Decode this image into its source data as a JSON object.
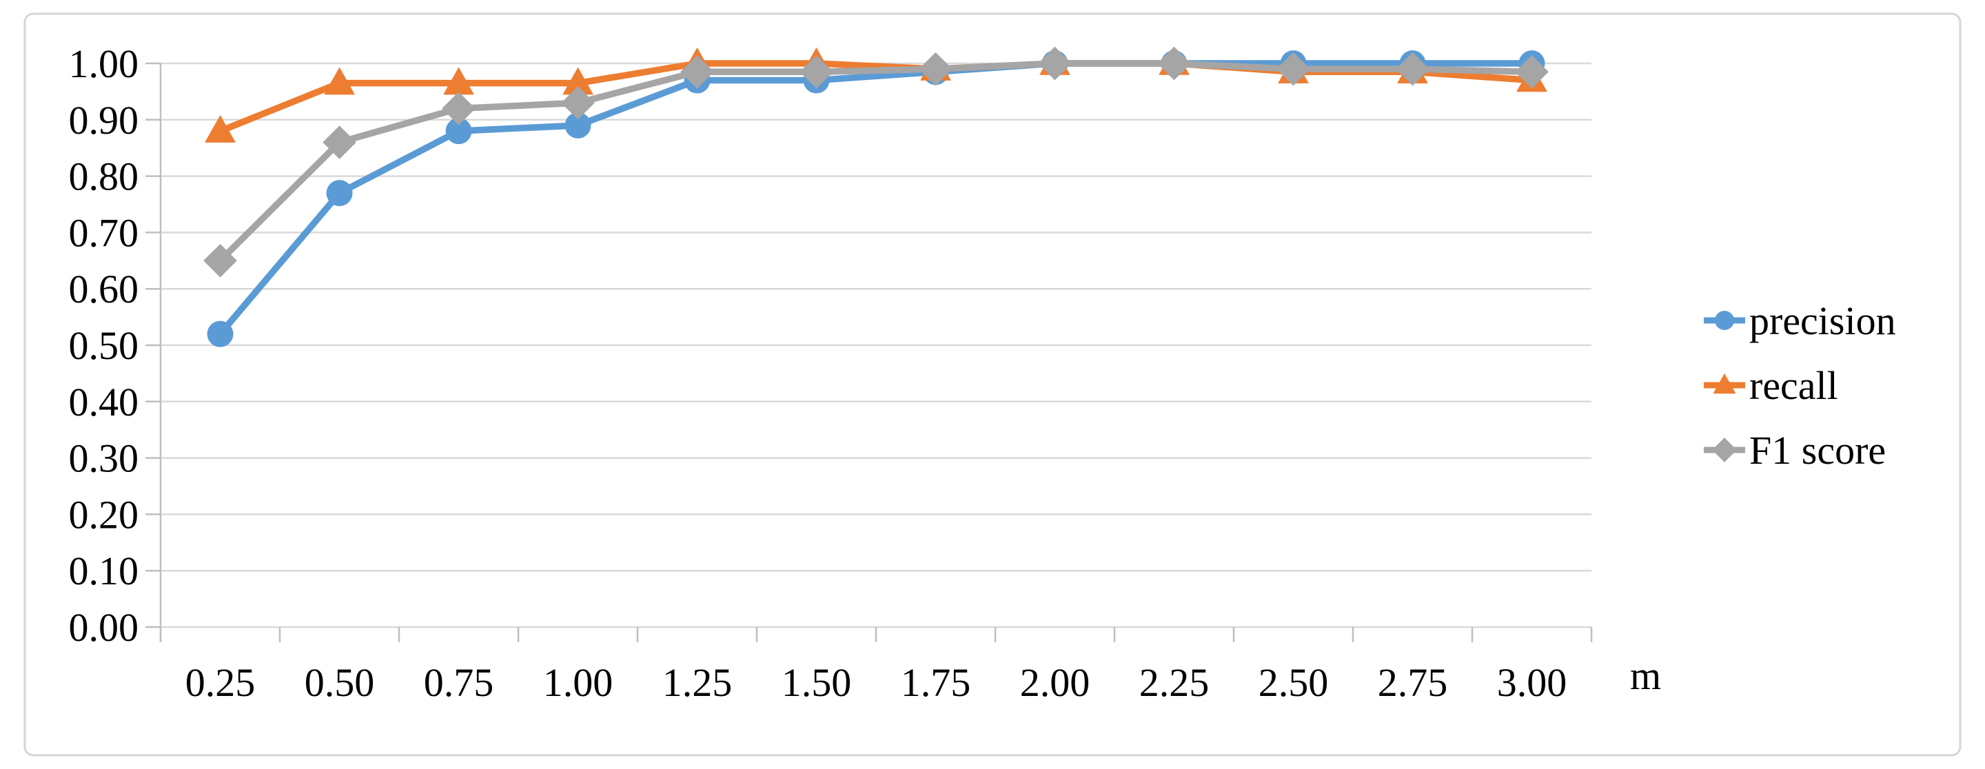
{
  "figure": {
    "background": "#ffffff",
    "border_color": "#d6d6d6",
    "gridline_color": "#d9d9d9",
    "axis_color": "#bfbfbf",
    "text_color": "#000000"
  },
  "chart_data": {
    "type": "line",
    "title": "",
    "xlabel": "m",
    "ylabel": "",
    "x": [
      0.25,
      0.5,
      0.75,
      1.0,
      1.25,
      1.5,
      1.75,
      2.0,
      2.25,
      2.5,
      2.75,
      3.0
    ],
    "x_tick_labels": [
      "0.25",
      "0.50",
      "0.75",
      "1.00",
      "1.25",
      "1.50",
      "1.75",
      "2.00",
      "2.25",
      "2.50",
      "2.75",
      "3.00"
    ],
    "y_tick_labels": [
      "0.00",
      "0.10",
      "0.20",
      "0.30",
      "0.40",
      "0.50",
      "0.60",
      "0.70",
      "0.80",
      "0.90",
      "1.00"
    ],
    "ylim": [
      0.0,
      1.0
    ],
    "y_step": 0.1,
    "grid": "horizontal",
    "legend_position": "right",
    "series": [
      {
        "name": "precision",
        "color": "#5b9bd5",
        "marker": "circle",
        "values": [
          0.52,
          0.77,
          0.88,
          0.89,
          0.97,
          0.97,
          0.985,
          1.0,
          1.0,
          1.0,
          1.0,
          1.0
        ]
      },
      {
        "name": "recall",
        "color": "#ed7d31",
        "marker": "triangle",
        "values": [
          0.88,
          0.965,
          0.965,
          0.965,
          1.0,
          1.0,
          0.99,
          1.0,
          1.0,
          0.985,
          0.985,
          0.97
        ]
      },
      {
        "name": "F1 score",
        "color": "#a5a5a5",
        "marker": "diamond",
        "values": [
          0.65,
          0.86,
          0.92,
          0.93,
          0.985,
          0.985,
          0.99,
          1.0,
          1.0,
          0.99,
          0.99,
          0.985
        ]
      }
    ]
  }
}
